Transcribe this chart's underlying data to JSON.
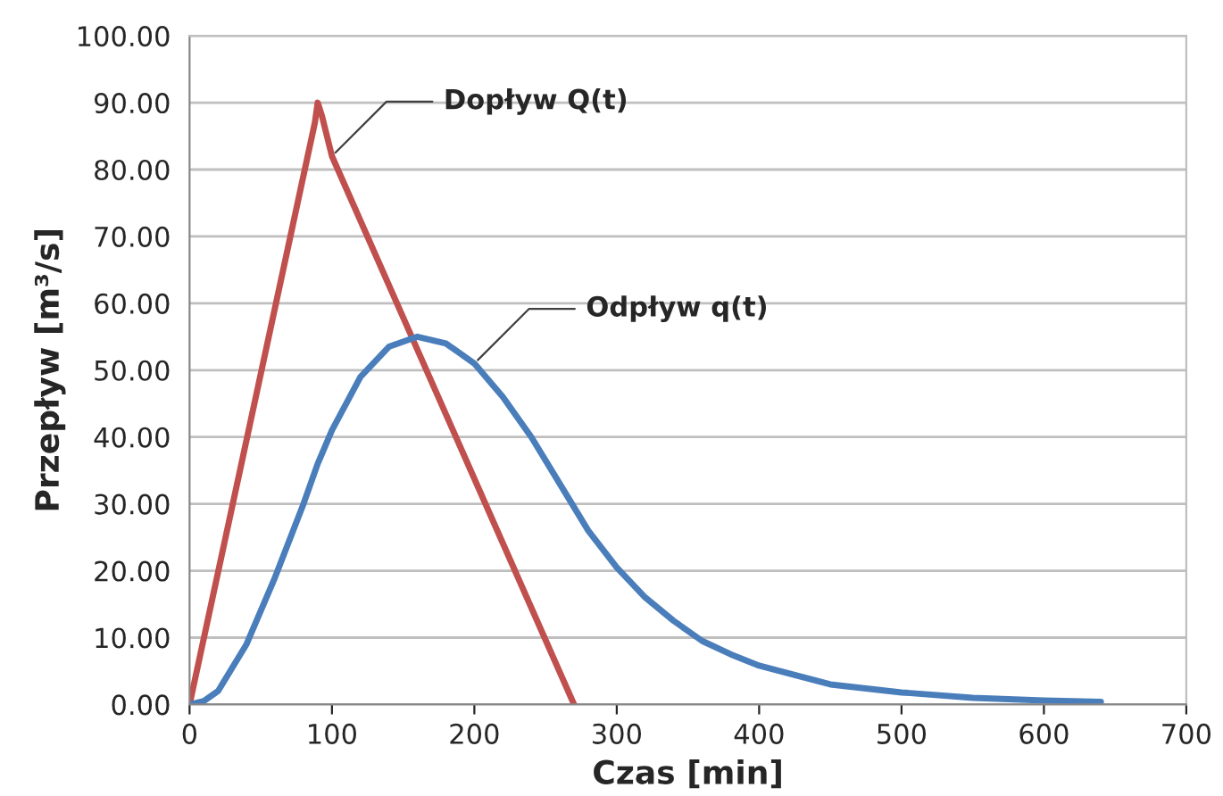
{
  "chart_data": {
    "type": "line",
    "xlabel": "Czas [min]",
    "ylabel": "Przepływ [m³/s]",
    "series": [
      {
        "name": "Dopływ Q(t)",
        "color": "#c0504d",
        "x": [
          0,
          88,
          90,
          93,
          100,
          270
        ],
        "values": [
          0,
          87,
          90,
          88,
          82,
          0
        ]
      },
      {
        "name": "Odpływ q(t)",
        "color": "#4a7ebb",
        "x": [
          0,
          10,
          20,
          40,
          60,
          80,
          90,
          100,
          120,
          140,
          160,
          180,
          200,
          220,
          240,
          260,
          280,
          300,
          320,
          340,
          360,
          380,
          400,
          450,
          500,
          550,
          600,
          640
        ],
        "values": [
          0,
          0.5,
          2,
          9,
          19,
          30,
          36,
          41,
          49,
          53.5,
          55,
          54,
          51,
          46,
          40,
          33,
          26,
          20.5,
          16,
          12.5,
          9.5,
          7.5,
          5.8,
          3,
          1.8,
          1.0,
          0.6,
          0.4
        ]
      }
    ],
    "xlim": [
      0,
      700
    ],
    "xticks": [
      0,
      100,
      200,
      300,
      400,
      500,
      600,
      700
    ],
    "ylim": [
      0,
      100
    ],
    "yticks": [
      {
        "value": 0,
        "label": "0.00"
      },
      {
        "value": 10,
        "label": "10.00"
      },
      {
        "value": 20,
        "label": "20.00"
      },
      {
        "value": 30,
        "label": "30.00"
      },
      {
        "value": 40,
        "label": "40.00"
      },
      {
        "value": 50,
        "label": "50.00"
      },
      {
        "value": 60,
        "label": "60.00"
      },
      {
        "value": 70,
        "label": "70.00"
      },
      {
        "value": 80,
        "label": "80.00"
      },
      {
        "value": 90,
        "label": "90.00"
      },
      {
        "value": 100,
        "label": "100.00"
      }
    ],
    "grid": "y",
    "legend": false,
    "marker": "none",
    "line_style": "solid"
  }
}
